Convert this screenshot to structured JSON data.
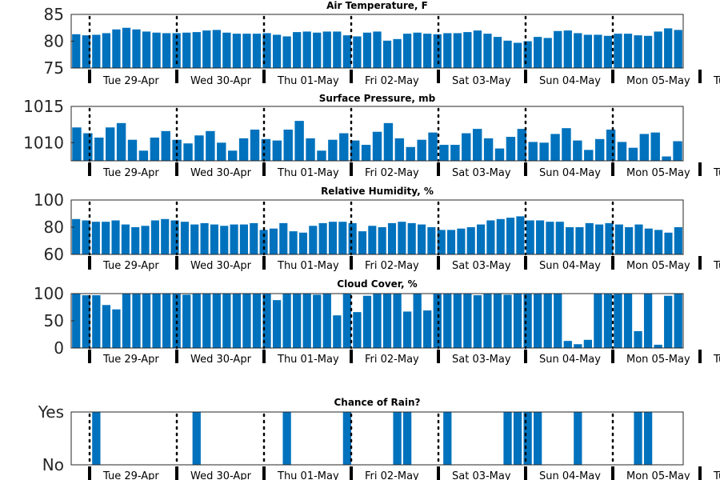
{
  "chart_data": [
    {
      "type": "bar",
      "title": "Air Temperature, F",
      "ylim": [
        75,
        85
      ],
      "yticks": [
        75,
        80,
        85
      ],
      "ytick_labels": [
        "75",
        "80",
        "85"
      ],
      "values": [
        81.3,
        81.1,
        81.2,
        81.5,
        82.2,
        82.5,
        82.2,
        81.8,
        81.6,
        81.5,
        81.5,
        81.6,
        81.7,
        82.0,
        82.1,
        81.6,
        81.4,
        81.4,
        81.4,
        81.5,
        81.2,
        80.9,
        81.7,
        81.8,
        81.6,
        81.8,
        81.8,
        81.1,
        80.9,
        81.6,
        81.8,
        80.1,
        80.4,
        81.4,
        81.6,
        81.4,
        81.3,
        81.5,
        81.5,
        81.7,
        82.0,
        81.4,
        80.8,
        80.1,
        79.7,
        80.0,
        80.8,
        80.6,
        81.9,
        82.0,
        81.5,
        81.2,
        81.2,
        81.0,
        81.4,
        81.4,
        81.1,
        81.0,
        81.8,
        82.4,
        82.1
      ]
    },
    {
      "type": "bar",
      "title": "Surface Pressure, mb",
      "ylim": [
        1007.5,
        1015
      ],
      "yticks": [
        1010,
        1015
      ],
      "ytick_labels": [
        "1010",
        "1015"
      ],
      "values": [
        1012.1,
        1011.3,
        1010.7,
        1012.1,
        1012.7,
        1010.4,
        1008.9,
        1010.7,
        1011.6,
        1010.4,
        1009.9,
        1011.0,
        1011.6,
        1010.0,
        1008.9,
        1010.6,
        1011.8,
        1010.5,
        1010.3,
        1011.8,
        1013.0,
        1010.6,
        1008.9,
        1010.4,
        1011.3,
        1010.3,
        1009.7,
        1011.5,
        1012.7,
        1010.6,
        1009.4,
        1010.4,
        1011.4,
        1009.7,
        1009.7,
        1011.3,
        1011.9,
        1010.6,
        1009.2,
        1010.8,
        1011.9,
        1010.1,
        1010.0,
        1011.2,
        1012.0,
        1010.3,
        1009.0,
        1010.5,
        1011.8,
        1010.1,
        1009.3,
        1011.2,
        1011.4,
        1008.1,
        1010.2
      ],
      "note": ""
    },
    {
      "type": "bar",
      "title": "Relative Humidity, %",
      "ylim": [
        60,
        100
      ],
      "yticks": [
        60,
        80,
        100
      ],
      "ytick_labels": [
        "60",
        "80",
        "100"
      ],
      "values": [
        86,
        85,
        84,
        84,
        85,
        82,
        80,
        81,
        85,
        86,
        85,
        84,
        82,
        83,
        82,
        81,
        82,
        82,
        83,
        78,
        79,
        83,
        77,
        76,
        81,
        83,
        84,
        84,
        83,
        77,
        81,
        80,
        83,
        84,
        83,
        82,
        80,
        78,
        78,
        79,
        80,
        82,
        85,
        86,
        87,
        88,
        85,
        85,
        84,
        84,
        80,
        80,
        83,
        82,
        83,
        82,
        80,
        82,
        79,
        78,
        76,
        80
      ]
    },
    {
      "type": "bar",
      "title": "Cloud Cover, %",
      "ylim": [
        0,
        100
      ],
      "yticks": [
        0,
        50,
        100
      ],
      "ytick_labels": [
        "0",
        "50",
        "100"
      ],
      "values": [
        100,
        97,
        97,
        79,
        71,
        100,
        100,
        100,
        100,
        100,
        100,
        98,
        100,
        100,
        100,
        100,
        100,
        100,
        100,
        100,
        88,
        100,
        100,
        100,
        98,
        100,
        60,
        100,
        66,
        96,
        100,
        100,
        100,
        67,
        100,
        69,
        100,
        100,
        100,
        100,
        97,
        100,
        100,
        98,
        100,
        100,
        100,
        100,
        100,
        13,
        7,
        15,
        100,
        100,
        100,
        100,
        31,
        100,
        6,
        96,
        100
      ]
    },
    {
      "type": "bar",
      "title": "Chance of Rain?",
      "ylim": [
        0,
        1
      ],
      "yticks": [
        0,
        1
      ],
      "ytick_labels": [
        "No",
        "Yes"
      ],
      "values": [
        0,
        0,
        1,
        0,
        0,
        0,
        0,
        0,
        0,
        0,
        0,
        0,
        1,
        0,
        0,
        0,
        0,
        0,
        0,
        0,
        0,
        1,
        0,
        0,
        0,
        0,
        0,
        1,
        0,
        0,
        0,
        0,
        1,
        1,
        0,
        0,
        0,
        1,
        0,
        0,
        0,
        0,
        0,
        1,
        1,
        1,
        1,
        0,
        0,
        0,
        1,
        0,
        0,
        0,
        0,
        0,
        1,
        1,
        0,
        0,
        0
      ]
    }
  ],
  "x_axis": {
    "tick_labels": [
      "Tue 29-Apr",
      "Wed 30-Apr",
      "Thu 01-May",
      "Fri 02-May",
      "Sat 03-May",
      "Sun 04-May",
      "Mon 05-May",
      "Tu"
    ]
  }
}
